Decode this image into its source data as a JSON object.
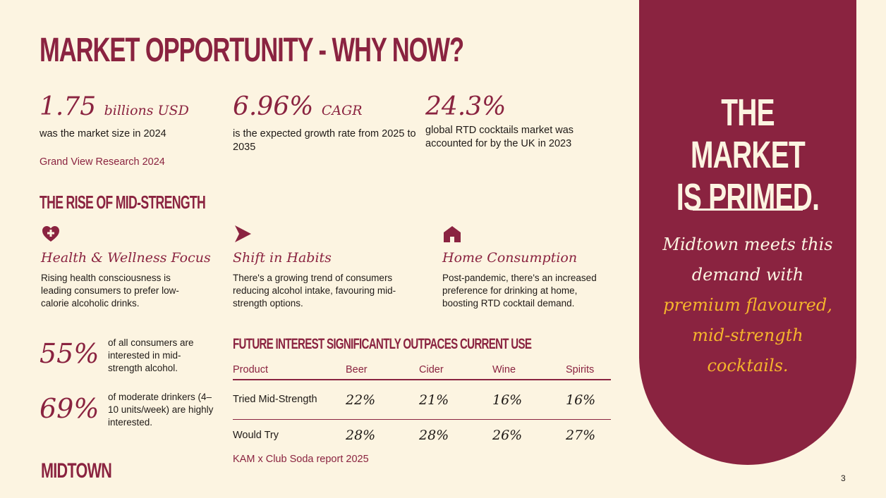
{
  "title": "MARKET OPPORTUNITY - WHY NOW?",
  "stats": [
    {
      "value": "1.75",
      "unit": "billions USD",
      "description": "was the market size in 2024"
    },
    {
      "value": "6.96%",
      "unit": "CAGR",
      "description": "is the expected growth rate from 2025 to 2035"
    },
    {
      "value": "24.3%",
      "unit": "",
      "description": "global RTD cocktails market was accounted for by the UK in 2023"
    }
  ],
  "source_1": "Grand View Research 2024",
  "section_title": "THE RISE OF MID-STRENGTH",
  "trends": [
    {
      "icon": "heart-plus-icon",
      "title": "Health & Wellness Focus",
      "description": "Rising health consciousness is leading consumers to prefer low-calorie alcoholic drinks."
    },
    {
      "icon": "arrow-right-icon",
      "title": "Shift in Habits",
      "description": "There's a growing trend of consumers reducing alcohol intake, favouring mid-strength options."
    },
    {
      "icon": "home-icon",
      "title": "Home Consumption",
      "description": "Post-pandemic, there's an increased preference for drinking at home, boosting RTD cocktail demand."
    }
  ],
  "percentages": [
    {
      "value": "55%",
      "text": "of all consumers are interested in mid-strength alcohol."
    },
    {
      "value": "69%",
      "text": "of moderate drinkers (4–10 units/week) are highly interested."
    }
  ],
  "table": {
    "title": "FUTURE INTEREST SIGNIFICANTLY OUTPACES CURRENT USE",
    "headers": [
      "Product",
      "Beer",
      "Cider",
      "Wine",
      "Spirits"
    ],
    "rows": [
      {
        "label": "Tried Mid-Strength",
        "values": [
          "22%",
          "21%",
          "16%",
          "16%"
        ]
      },
      {
        "label": "Would Try",
        "values": [
          "28%",
          "28%",
          "26%",
          "27%"
        ]
      }
    ]
  },
  "source_2": "KAM x Club Soda report 2025",
  "logo": "MIDTOWN",
  "page_number": "3",
  "panel": {
    "heading_line1": "THE MARKET",
    "heading_line2": "IS PRIMED.",
    "text_plain": "Midtown meets this demand with",
    "text_highlight": "premium flavoured, mid-strength cocktails.",
    "background_color": "#8a2340",
    "highlight_color": "#f5b52c"
  }
}
